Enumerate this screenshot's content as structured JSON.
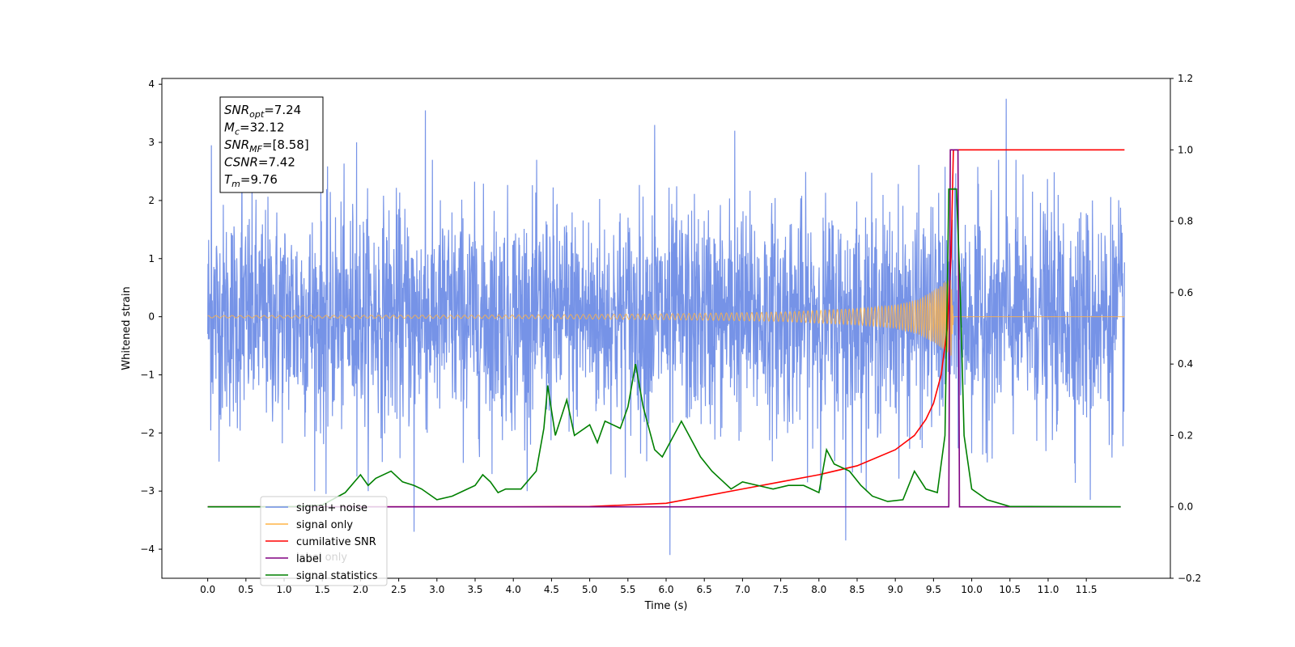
{
  "chart_data": {
    "type": "line",
    "xlabel": "Time (s)",
    "ylabel": "Whitened strain",
    "xlim": [
      -0.6,
      12.6
    ],
    "ylim": [
      -4.5,
      4.1
    ],
    "y2lim": [
      -0.2,
      1.2
    ],
    "x_ticks": [
      "0.0",
      "0.5",
      "1.0",
      "1.5",
      "2.0",
      "2.5",
      "3.0",
      "3.5",
      "4.0",
      "4.5",
      "5.0",
      "5.5",
      "6.0",
      "6.5",
      "7.0",
      "7.5",
      "8.0",
      "8.5",
      "9.0",
      "9.5",
      "10.0",
      "10.5",
      "11.0",
      "11.5"
    ],
    "y_ticks": [
      "4",
      "3",
      "2",
      "1",
      "0",
      "−1",
      "−2",
      "−3",
      "−4"
    ],
    "y2_ticks": [
      "1.2",
      "1.0",
      "0.8",
      "0.6",
      "0.4",
      "0.2",
      "0.0",
      "−0.2"
    ],
    "annotation": [
      {
        "base": "SNR",
        "sub": "opt",
        "value": "=7.24"
      },
      {
        "base": "M",
        "sub": "c",
        "value": "=32.12"
      },
      {
        "base": "SNR",
        "sub": "MF",
        "value": "=[8.58]"
      },
      {
        "base": "CSNR",
        "sub": "",
        "value": "=7.42"
      },
      {
        "base": "T",
        "sub": "m",
        "value": "=9.76"
      }
    ],
    "legend": [
      {
        "name": "signal+ noise",
        "color": "#6f8de6"
      },
      {
        "name": "signal only",
        "color": "#ffb347"
      },
      {
        "name": "cumilative SNR",
        "color": "#ff0000"
      },
      {
        "name": "label",
        "color": "#800080"
      },
      {
        "name": "signal statistics",
        "color": "#008000"
      }
    ],
    "legend_hidden_text": "label only",
    "series": [
      {
        "name": "signal+ noise",
        "axis": "left",
        "color": "#6f8de6",
        "x_range": [
          0,
          12.0
        ],
        "std": 0.95,
        "peaks": [
          [
            0.05,
            2.95
          ],
          [
            0.45,
            2.9
          ],
          [
            1.95,
            3.0
          ],
          [
            2.85,
            3.55
          ],
          [
            5.85,
            3.3
          ],
          [
            6.9,
            3.2
          ],
          [
            10.45,
            3.75
          ],
          [
            6.05,
            -4.1
          ],
          [
            8.35,
            -3.85
          ],
          [
            2.7,
            -3.7
          ],
          [
            1.55,
            -3.05
          ],
          [
            11.55,
            -3.15
          ]
        ]
      },
      {
        "name": "signal only",
        "axis": "left",
        "color": "#ffb347",
        "x_start": 0.0,
        "x_merge": 9.76,
        "x_end": 12.0,
        "amp_points": [
          [
            0.0,
            0.02
          ],
          [
            4.0,
            0.03
          ],
          [
            6.0,
            0.05
          ],
          [
            7.5,
            0.08
          ],
          [
            8.5,
            0.14
          ],
          [
            9.0,
            0.2
          ],
          [
            9.3,
            0.3
          ],
          [
            9.5,
            0.45
          ],
          [
            9.65,
            0.6
          ],
          [
            9.73,
            0.7
          ],
          [
            9.76,
            0.1
          ]
        ]
      },
      {
        "name": "cumilative SNR",
        "axis": "right",
        "color": "#ff0000",
        "points": [
          [
            0.0,
            0.0
          ],
          [
            4.0,
            0.0
          ],
          [
            5.0,
            0.001
          ],
          [
            6.0,
            0.01
          ],
          [
            6.5,
            0.03
          ],
          [
            7.0,
            0.05
          ],
          [
            7.5,
            0.07
          ],
          [
            8.0,
            0.09
          ],
          [
            8.5,
            0.115
          ],
          [
            9.0,
            0.16
          ],
          [
            9.25,
            0.2
          ],
          [
            9.4,
            0.245
          ],
          [
            9.5,
            0.29
          ],
          [
            9.6,
            0.37
          ],
          [
            9.68,
            0.5
          ],
          [
            9.73,
            0.7
          ],
          [
            9.76,
            1.0
          ],
          [
            12.0,
            1.0
          ]
        ]
      },
      {
        "name": "label",
        "axis": "right",
        "color": "#800080",
        "points": [
          [
            0.0,
            0.0
          ],
          [
            9.7,
            0.0
          ],
          [
            9.72,
            1.0
          ],
          [
            9.82,
            1.0
          ],
          [
            9.84,
            0.0
          ],
          [
            11.95,
            0.0
          ]
        ]
      },
      {
        "name": "signal statistics",
        "axis": "right",
        "color": "#008000",
        "points": [
          [
            0.0,
            0.0
          ],
          [
            0.8,
            0.0
          ],
          [
            1.2,
            0.001
          ],
          [
            1.5,
            0.005
          ],
          [
            1.8,
            0.04
          ],
          [
            2.0,
            0.09
          ],
          [
            2.1,
            0.06
          ],
          [
            2.2,
            0.08
          ],
          [
            2.4,
            0.1
          ],
          [
            2.55,
            0.07
          ],
          [
            2.7,
            0.06
          ],
          [
            2.8,
            0.05
          ],
          [
            3.0,
            0.02
          ],
          [
            3.2,
            0.03
          ],
          [
            3.4,
            0.05
          ],
          [
            3.5,
            0.06
          ],
          [
            3.6,
            0.09
          ],
          [
            3.7,
            0.07
          ],
          [
            3.8,
            0.04
          ],
          [
            3.9,
            0.05
          ],
          [
            4.1,
            0.05
          ],
          [
            4.3,
            0.1
          ],
          [
            4.4,
            0.22
          ],
          [
            4.45,
            0.34
          ],
          [
            4.55,
            0.2
          ],
          [
            4.7,
            0.3
          ],
          [
            4.8,
            0.2
          ],
          [
            5.0,
            0.23
          ],
          [
            5.1,
            0.18
          ],
          [
            5.2,
            0.24
          ],
          [
            5.4,
            0.22
          ],
          [
            5.5,
            0.28
          ],
          [
            5.6,
            0.4
          ],
          [
            5.7,
            0.28
          ],
          [
            5.85,
            0.16
          ],
          [
            5.95,
            0.14
          ],
          [
            6.05,
            0.18
          ],
          [
            6.2,
            0.24
          ],
          [
            6.3,
            0.2
          ],
          [
            6.45,
            0.14
          ],
          [
            6.6,
            0.1
          ],
          [
            6.7,
            0.08
          ],
          [
            6.85,
            0.05
          ],
          [
            7.0,
            0.07
          ],
          [
            7.2,
            0.06
          ],
          [
            7.4,
            0.05
          ],
          [
            7.6,
            0.06
          ],
          [
            7.8,
            0.06
          ],
          [
            8.0,
            0.04
          ],
          [
            8.1,
            0.16
          ],
          [
            8.2,
            0.12
          ],
          [
            8.4,
            0.1
          ],
          [
            8.55,
            0.06
          ],
          [
            8.7,
            0.03
          ],
          [
            8.9,
            0.015
          ],
          [
            9.1,
            0.02
          ],
          [
            9.25,
            0.1
          ],
          [
            9.4,
            0.05
          ],
          [
            9.55,
            0.04
          ],
          [
            9.65,
            0.2
          ],
          [
            9.68,
            0.6
          ],
          [
            9.7,
            0.89
          ],
          [
            9.8,
            0.89
          ],
          [
            9.85,
            0.6
          ],
          [
            9.9,
            0.2
          ],
          [
            10.0,
            0.05
          ],
          [
            10.2,
            0.02
          ],
          [
            10.5,
            0.001
          ],
          [
            11.95,
            0.0
          ]
        ]
      }
    ]
  }
}
